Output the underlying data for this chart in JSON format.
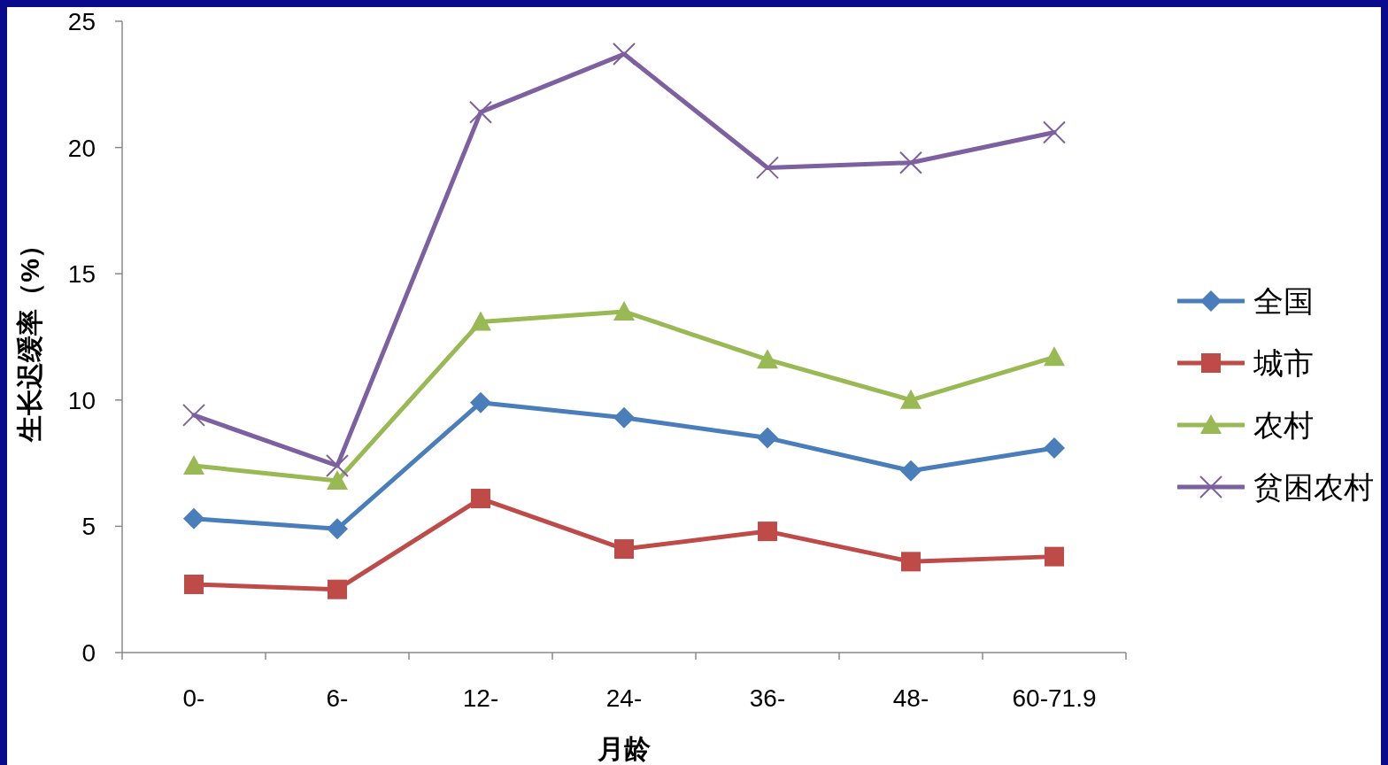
{
  "chart_data": {
    "type": "line",
    "xlabel": "月龄",
    "ylabel": "生长迟缓率（%）",
    "categories": [
      "0-",
      "6-",
      "12-",
      "24-",
      "36-",
      "48-",
      "60-71.9"
    ],
    "ylim": [
      0,
      25
    ],
    "yticks": [
      0,
      5,
      10,
      15,
      20,
      25
    ],
    "grid": false,
    "legend": "right",
    "series": [
      {
        "name": "全国",
        "color": "#4a7ebb",
        "marker": "diamond",
        "values": [
          5.3,
          4.9,
          9.9,
          9.3,
          8.5,
          7.2,
          8.1
        ]
      },
      {
        "name": "城市",
        "color": "#be4b48",
        "marker": "square",
        "values": [
          2.7,
          2.5,
          6.1,
          4.1,
          4.8,
          3.6,
          3.8
        ]
      },
      {
        "name": "农村",
        "color": "#98b954",
        "marker": "triangle",
        "values": [
          7.4,
          6.8,
          13.1,
          13.5,
          11.6,
          10.0,
          11.7
        ]
      },
      {
        "name": "贫困农村",
        "color": "#7d60a0",
        "marker": "cross",
        "values": [
          9.4,
          7.4,
          21.4,
          23.7,
          19.2,
          19.4,
          20.6
        ]
      }
    ]
  }
}
